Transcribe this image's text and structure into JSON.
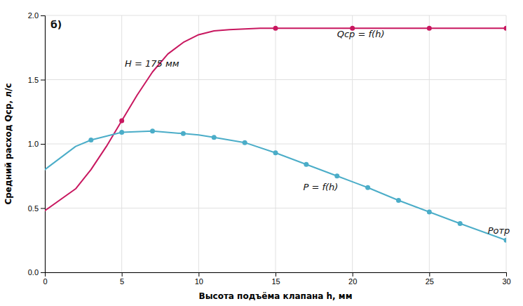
{
  "chart_data": {
    "type": "line",
    "xlabel": "Высота подъёма клапана h, мм",
    "ylabel": "Средний расход Qср, л/с",
    "xlim": [
      0,
      30
    ],
    "ylim": [
      0,
      2.0
    ],
    "xticks": [
      0,
      5,
      10,
      15,
      20,
      25,
      30
    ],
    "yticks": [
      {
        "value": 0,
        "label": "0.0"
      },
      0.5,
      {
        "value": 1.0,
        "label": "1.0"
      },
      1.5,
      {
        "value": 2.0,
        "label": "2.0"
      }
    ],
    "grid": true,
    "series": [
      {
        "type": "line",
        "color": "#c8175f",
        "x": [
          0,
          2,
          3,
          4,
          5,
          6,
          7,
          8,
          9,
          10,
          11,
          12,
          13,
          14,
          15,
          17,
          20,
          22,
          25,
          27,
          30
        ],
        "values": [
          0.48,
          0.65,
          0.8,
          0.98,
          1.18,
          1.38,
          1.56,
          1.7,
          1.79,
          1.85,
          1.88,
          1.89,
          1.895,
          1.9,
          1.9,
          1.9,
          1.9,
          1.9,
          1.9,
          1.9,
          1.9
        ]
      },
      {
        "type": "line",
        "color": "#4badc8",
        "x": [
          0,
          2,
          3,
          5,
          7,
          9,
          10,
          11,
          13,
          15,
          17,
          19,
          21,
          23,
          25,
          27,
          30
        ],
        "values": [
          0.8,
          0.98,
          1.03,
          1.09,
          1.1,
          1.08,
          1.07,
          1.05,
          1.01,
          0.93,
          0.84,
          0.75,
          0.66,
          0.56,
          0.47,
          0.38,
          0.25
        ]
      },
      {
        "type": "scatter",
        "marker": "circle",
        "color": "#c8175f",
        "x": [
          5,
          15,
          20,
          25,
          30
        ],
        "values": [
          1.18,
          1.9,
          1.9,
          1.9,
          1.9
        ]
      },
      {
        "type": "scatter",
        "marker": "circle",
        "color": "#4badc8",
        "x": [
          3,
          5,
          7,
          9,
          11,
          13,
          15,
          17,
          19,
          21,
          23,
          25,
          27,
          30
        ],
        "values": [
          1.03,
          1.09,
          1.1,
          1.08,
          1.05,
          1.01,
          0.93,
          0.84,
          0.75,
          0.66,
          0.56,
          0.47,
          0.38,
          0.25
        ]
      }
    ],
    "annotations": [
      {
        "text": "H = 175 мм",
        "x": 5.2,
        "y": 1.6
      },
      {
        "text": "Qср = f(h)",
        "x": 19.0,
        "y": 1.83
      },
      {
        "text": "P = f(h)",
        "x": 16.8,
        "y": 0.64
      },
      {
        "text": "Pотр",
        "x": 28.8,
        "y": 0.3
      },
      {
        "text": "б)"
      }
    ]
  }
}
